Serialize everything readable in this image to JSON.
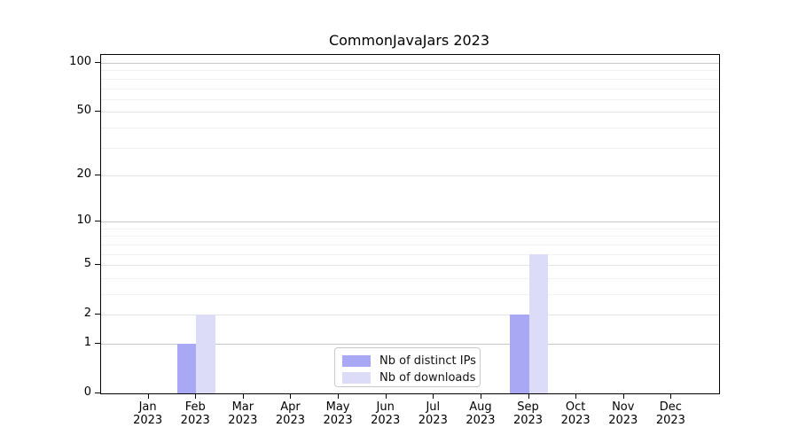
{
  "chart_data": {
    "type": "bar",
    "title": "CommonJavaJars 2023",
    "categories": [
      "Jan",
      "Feb",
      "Mar",
      "Apr",
      "May",
      "Jun",
      "Jul",
      "Aug",
      "Sep",
      "Oct",
      "Nov",
      "Dec"
    ],
    "x_year_label": "2023",
    "series": [
      {
        "name": "Nb of distinct IPs",
        "color": "#a8a8f5",
        "values": [
          0,
          1,
          0,
          0,
          0,
          0,
          0,
          0,
          2,
          0,
          0,
          0
        ]
      },
      {
        "name": "Nb of downloads",
        "color": "#dcdcf9",
        "values": [
          0,
          2,
          0,
          0,
          0,
          0,
          0,
          0,
          6,
          0,
          0,
          0
        ]
      }
    ],
    "xlabel": "",
    "ylabel": "",
    "y_scale": "log1p",
    "y_tick_values": [
      0,
      1,
      2,
      5,
      10,
      20,
      50,
      100
    ],
    "y_minor_gridlines": [
      3,
      4,
      6,
      7,
      8,
      9,
      30,
      40,
      60,
      70,
      80,
      90
    ],
    "ylim": [
      0,
      112
    ],
    "grid": "horizontal",
    "legend_position": "lower-center",
    "colors": {
      "spine": "#000000",
      "grid_major_dark": "#c6c6c6",
      "grid_major_light": "#e4e4e4",
      "grid_minor": "#f2f2f2",
      "background": "#ffffff"
    }
  }
}
